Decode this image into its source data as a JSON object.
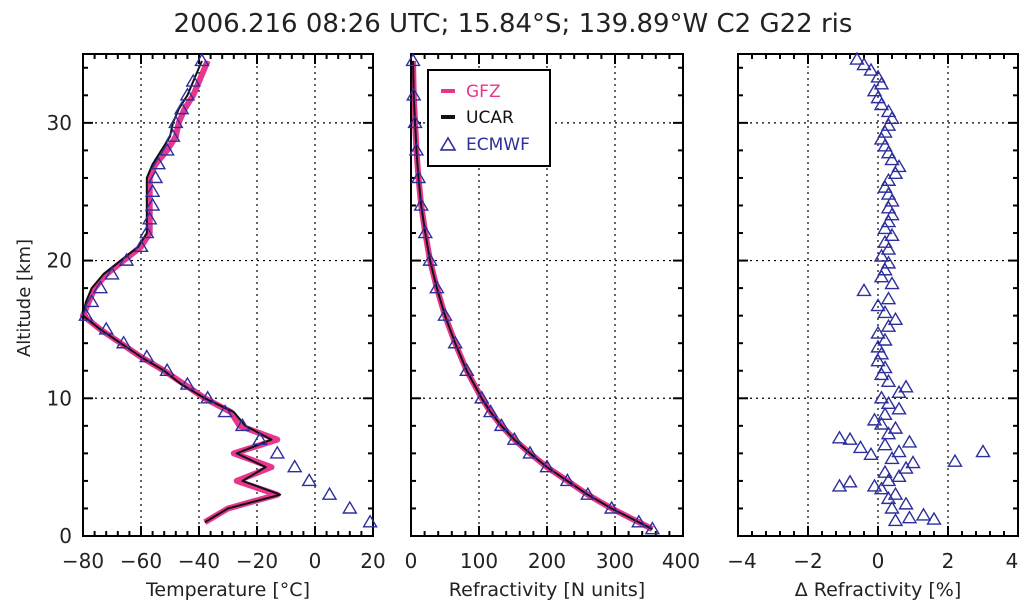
{
  "title": "2006.216 08:26 UTC;  15.84°S; 139.89°W C2 G22 ris",
  "colors": {
    "gfz": "#e8368f",
    "ucar": "#111111",
    "ecmwf": "#2c2f9c"
  },
  "legend": {
    "gfz": "GFZ",
    "ucar": "UCAR",
    "ecmwf": "ECMWF"
  },
  "ylabel": "Altitude [km]",
  "chart_data": [
    {
      "type": "line",
      "xlabel": "Temperature [°C]",
      "ylabel": "Altitude [km]",
      "xlim": [
        -80,
        20
      ],
      "ylim": [
        0,
        35
      ],
      "xticks": [
        "-80",
        "-60",
        "-40",
        "-20",
        "0",
        "20"
      ],
      "yticks": [
        "0",
        "10",
        "20",
        "30"
      ],
      "grid": true,
      "series": [
        {
          "name": "GFZ",
          "y": [
            1,
            2,
            3,
            4,
            5,
            6,
            7,
            8,
            9,
            10,
            11,
            12,
            13,
            14,
            15,
            16,
            17,
            18,
            19,
            20,
            21,
            22,
            23,
            24,
            25,
            26,
            27,
            28,
            29,
            30,
            31,
            32,
            33,
            34.5
          ],
          "x": [
            -38,
            -30,
            -13,
            -27,
            -15,
            -28,
            -13,
            -26,
            -29,
            -38,
            -45,
            -52,
            -60,
            -67,
            -74,
            -80,
            -78,
            -76,
            -72,
            -66,
            -60,
            -57,
            -57,
            -57,
            -57,
            -57,
            -55,
            -51,
            -48,
            -47,
            -45,
            -42,
            -40,
            -37
          ]
        },
        {
          "name": "UCAR",
          "y": [
            1,
            2,
            3,
            4,
            5,
            6,
            7,
            8,
            9,
            10,
            11,
            12,
            13,
            14,
            15,
            16,
            17,
            18,
            19,
            20,
            21,
            22,
            23,
            24,
            25,
            26,
            27,
            28,
            29,
            30,
            31,
            32,
            33,
            34.5
          ],
          "x": [
            -38,
            -30,
            -12,
            -25,
            -17,
            -27,
            -15,
            -24,
            -28,
            -38,
            -46,
            -52,
            -60,
            -67,
            -74,
            -80,
            -79,
            -77,
            -73,
            -67,
            -61,
            -58,
            -58,
            -58,
            -58,
            -58,
            -56,
            -53,
            -50,
            -49,
            -47,
            -44,
            -42,
            -39
          ]
        },
        {
          "name": "ECMWF",
          "y": [
            1,
            2,
            3,
            4,
            5,
            6,
            7,
            8,
            9,
            10,
            11,
            12,
            13,
            14,
            15,
            16,
            17,
            18,
            19,
            20,
            21,
            22,
            23,
            24,
            25,
            26,
            27,
            28,
            29,
            30,
            31,
            32,
            33,
            34.5
          ],
          "x": [
            19,
            12,
            5,
            -2,
            -7,
            -13,
            -19,
            -25,
            -31,
            -37,
            -44,
            -51,
            -58,
            -66,
            -72,
            -79,
            -77,
            -74,
            -70,
            -65,
            -60,
            -58,
            -57,
            -56,
            -56,
            -55,
            -54,
            -51,
            -49,
            -48,
            -46,
            -44,
            -42,
            -39
          ]
        }
      ]
    },
    {
      "type": "line",
      "xlabel": "Refractivity [N units]",
      "xlim": [
        0,
        400
      ],
      "ylim": [
        0,
        35
      ],
      "xticks": [
        "0",
        "100",
        "200",
        "300",
        "400"
      ],
      "grid": true,
      "series": [
        {
          "name": "GFZ",
          "y": [
            0.5,
            1,
            2,
            3,
            4,
            5,
            6,
            7,
            8,
            9,
            10,
            12,
            14,
            16,
            18,
            20,
            22,
            24,
            26,
            28,
            30,
            32,
            34.5
          ],
          "x": [
            355,
            335,
            295,
            260,
            230,
            200,
            175,
            152,
            133,
            117,
            104,
            82,
            65,
            50,
            38,
            28,
            21,
            15,
            11,
            8,
            6,
            4,
            3
          ]
        },
        {
          "name": "UCAR",
          "y": [
            0.5,
            1,
            2,
            3,
            4,
            5,
            6,
            7,
            8,
            9,
            10,
            12,
            14,
            16,
            18,
            20,
            22,
            24,
            26,
            28,
            30,
            32,
            34.5
          ],
          "x": [
            355,
            335,
            295,
            260,
            230,
            200,
            175,
            152,
            133,
            117,
            104,
            82,
            65,
            50,
            38,
            28,
            21,
            15,
            11,
            8,
            6,
            4,
            3
          ]
        },
        {
          "name": "ECMWF",
          "y": [
            0.5,
            1,
            2,
            3,
            4,
            5,
            6,
            7,
            8,
            9,
            10,
            12,
            14,
            16,
            18,
            20,
            22,
            24,
            26,
            28,
            30,
            32,
            34.5
          ],
          "x": [
            355,
            335,
            295,
            260,
            230,
            200,
            175,
            152,
            133,
            117,
            104,
            82,
            65,
            50,
            38,
            28,
            21,
            15,
            11,
            8,
            6,
            4,
            3
          ]
        }
      ]
    },
    {
      "type": "scatter",
      "xlabel": "Δ Refractivity [%]",
      "xlim": [
        -4,
        4
      ],
      "ylim": [
        0,
        35
      ],
      "xticks": [
        "-4",
        "-2",
        "0",
        "2",
        "4"
      ],
      "grid": true,
      "series": [
        {
          "name": "ECMWF",
          "points": [
            [
              1.6,
              1.2
            ],
            [
              1.3,
              1.5
            ],
            [
              0.9,
              1.3
            ],
            [
              0.5,
              1.1
            ],
            [
              0.4,
              2.0
            ],
            [
              0.8,
              2.3
            ],
            [
              0.3,
              2.7
            ],
            [
              0.5,
              3.0
            ],
            [
              0.1,
              3.4
            ],
            [
              -0.1,
              3.6
            ],
            [
              -1.1,
              3.6
            ],
            [
              -0.8,
              3.9
            ],
            [
              0.3,
              4.0
            ],
            [
              0.6,
              4.3
            ],
            [
              0.2,
              4.6
            ],
            [
              0.8,
              4.9
            ],
            [
              1.0,
              5.3
            ],
            [
              0.4,
              5.6
            ],
            [
              -0.2,
              5.9
            ],
            [
              2.2,
              5.4
            ],
            [
              3.0,
              6.1
            ],
            [
              0.6,
              6.1
            ],
            [
              -0.5,
              6.4
            ],
            [
              0.2,
              6.6
            ],
            [
              0.9,
              6.8
            ],
            [
              -0.8,
              7.0
            ],
            [
              -1.1,
              7.1
            ],
            [
              0.3,
              7.4
            ],
            [
              0.5,
              7.8
            ],
            [
              0.1,
              8.1
            ],
            [
              -0.1,
              8.4
            ],
            [
              0.2,
              8.8
            ],
            [
              0.6,
              9.2
            ],
            [
              0.3,
              9.6
            ],
            [
              0.1,
              10.0
            ],
            [
              0.6,
              10.4
            ],
            [
              0.8,
              10.8
            ],
            [
              0.3,
              11.2
            ],
            [
              0.1,
              11.7
            ],
            [
              0.2,
              12.2
            ],
            [
              0.0,
              12.7
            ],
            [
              0.1,
              13.2
            ],
            [
              0.0,
              13.7
            ],
            [
              0.2,
              14.2
            ],
            [
              0.0,
              14.7
            ],
            [
              0.3,
              15.2
            ],
            [
              0.5,
              15.7
            ],
            [
              0.2,
              16.2
            ],
            [
              0.0,
              16.7
            ],
            [
              0.3,
              17.2
            ],
            [
              -0.4,
              17.8
            ],
            [
              0.4,
              18.3
            ],
            [
              0.1,
              18.8
            ],
            [
              0.2,
              19.3
            ],
            [
              0.3,
              19.8
            ],
            [
              0.1,
              20.3
            ],
            [
              0.3,
              20.8
            ],
            [
              0.2,
              21.3
            ],
            [
              0.4,
              21.8
            ],
            [
              0.2,
              22.3
            ],
            [
              0.3,
              22.8
            ],
            [
              0.4,
              23.3
            ],
            [
              0.3,
              23.8
            ],
            [
              0.4,
              24.3
            ],
            [
              0.3,
              24.8
            ],
            [
              0.2,
              25.3
            ],
            [
              0.3,
              25.8
            ],
            [
              0.5,
              26.3
            ],
            [
              0.6,
              26.8
            ],
            [
              0.4,
              27.3
            ],
            [
              0.3,
              27.8
            ],
            [
              0.2,
              28.3
            ],
            [
              0.1,
              28.8
            ],
            [
              0.2,
              29.3
            ],
            [
              0.3,
              29.8
            ],
            [
              0.4,
              30.3
            ],
            [
              0.3,
              30.8
            ],
            [
              0.1,
              31.3
            ],
            [
              0.0,
              31.8
            ],
            [
              -0.1,
              32.3
            ],
            [
              0.1,
              32.8
            ],
            [
              0.0,
              33.3
            ],
            [
              -0.2,
              33.8
            ],
            [
              -0.4,
              34.2
            ],
            [
              -0.6,
              34.6
            ]
          ]
        }
      ]
    }
  ]
}
